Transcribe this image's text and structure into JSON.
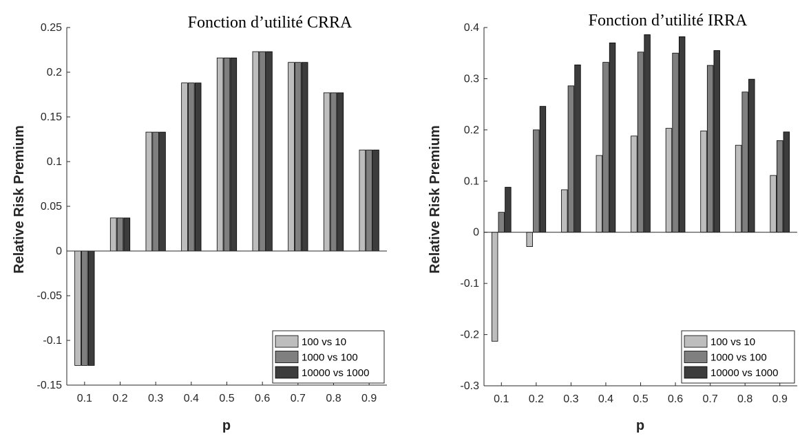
{
  "colors": {
    "series": [
      "#bdbdbd",
      "#7f7f7f",
      "#3c3c3c"
    ],
    "axis": "#262626",
    "bar_edge": "#000000",
    "background": "#ffffff"
  },
  "chart_data": [
    {
      "type": "bar",
      "title": "Fonction d’utilité CRRA",
      "xlabel": "p",
      "ylabel": "Relative Risk Premium",
      "categories": [
        "0.1",
        "0.2",
        "0.3",
        "0.4",
        "0.5",
        "0.6",
        "0.7",
        "0.8",
        "0.9"
      ],
      "ylim": [
        -0.15,
        0.25
      ],
      "yticks": [
        -0.15,
        -0.1,
        -0.05,
        0,
        0.05,
        0.1,
        0.15,
        0.2,
        0.25
      ],
      "ytick_labels": [
        "-0.15",
        "-0.1",
        "-0.05",
        "0",
        "0.05",
        "0.1",
        "0.15",
        "0.2",
        "0.25"
      ],
      "legend_position": "bottom-right",
      "grid": false,
      "series": [
        {
          "name": "100 vs 10",
          "values": [
            -0.128,
            0.037,
            0.133,
            0.188,
            0.216,
            0.223,
            0.211,
            0.177,
            0.113
          ]
        },
        {
          "name": "1000 vs 100",
          "values": [
            -0.128,
            0.037,
            0.133,
            0.188,
            0.216,
            0.223,
            0.211,
            0.177,
            0.113
          ]
        },
        {
          "name": "10000 vs 1000",
          "values": [
            -0.128,
            0.037,
            0.133,
            0.188,
            0.216,
            0.223,
            0.211,
            0.177,
            0.113
          ]
        }
      ]
    },
    {
      "type": "bar",
      "title": "Fonction d’utilité IRRA",
      "xlabel": "p",
      "ylabel": "Relative Risk Premium",
      "categories": [
        "0.1",
        "0.2",
        "0.3",
        "0.4",
        "0.5",
        "0.6",
        "0.7",
        "0.8",
        "0.9"
      ],
      "ylim": [
        -0.3,
        0.4
      ],
      "yticks": [
        -0.3,
        -0.2,
        -0.1,
        0,
        0.1,
        0.2,
        0.3,
        0.4
      ],
      "ytick_labels": [
        "-0.3",
        "-0.2",
        "-0.1",
        "0",
        "0.1",
        "0.2",
        "0.3",
        "0.4"
      ],
      "legend_position": "bottom-right",
      "grid": false,
      "series": [
        {
          "name": "100 vs 10",
          "values": [
            -0.213,
            -0.028,
            0.083,
            0.15,
            0.188,
            0.203,
            0.198,
            0.17,
            0.111
          ]
        },
        {
          "name": "1000 vs 100",
          "values": [
            0.039,
            0.2,
            0.286,
            0.332,
            0.352,
            0.35,
            0.326,
            0.274,
            0.179
          ]
        },
        {
          "name": "10000 vs 1000",
          "values": [
            0.088,
            0.246,
            0.327,
            0.37,
            0.386,
            0.382,
            0.355,
            0.299,
            0.196
          ]
        }
      ]
    }
  ]
}
